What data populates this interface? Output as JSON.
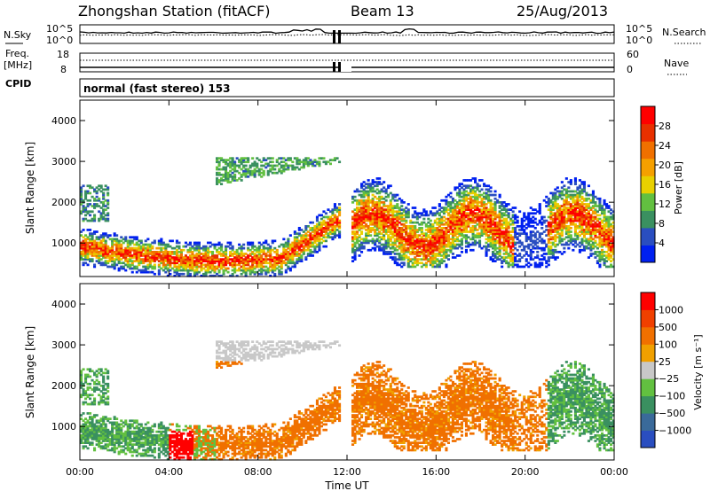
{
  "header": {
    "station_title": "Zhongshan Station (fitACF)",
    "beam": "Beam 13",
    "date": "25/Aug/2013"
  },
  "top_panel": {
    "left_label": "N.Sky",
    "left_ticks": [
      "10^5",
      "10^0"
    ],
    "right_ticks": [
      "10^5",
      "10^0"
    ],
    "right_label": "N.Search"
  },
  "freq_panel": {
    "left_label_1": "Freq.",
    "left_label_2": "[MHz]",
    "left_ticks": [
      "18",
      "8"
    ],
    "right_ticks": [
      "60",
      "0"
    ],
    "right_label": "Nave",
    "cpid_label": "CPID"
  },
  "mode_text": "normal (fast stereo) 153",
  "range_axis": {
    "label": "Slant Range [km]",
    "ticks": [
      "4000",
      "3000",
      "2000",
      "1000"
    ]
  },
  "time_axis": {
    "label": "Time UT",
    "ticks": [
      "00:00",
      "04:00",
      "08:00",
      "12:00",
      "16:00",
      "20:00",
      "00:00"
    ]
  },
  "colors": {
    "power": [
      "#0020f0",
      "#2a4ec0",
      "#3a9060",
      "#62c040",
      "#e8d000",
      "#f5a000",
      "#f07000",
      "#e83000",
      "#ff0000"
    ],
    "velocity": [
      "#2a4ec0",
      "#3a6a9a",
      "#3a9060",
      "#62c040",
      "#c8c8c8",
      "#f0a000",
      "#f07000",
      "#f04000",
      "#ff0000"
    ]
  },
  "chart_data": [
    {
      "type": "heatmap",
      "name": "power",
      "xlabel": "Time UT",
      "ylabel": "Slant Range [km]",
      "x_range_hours": [
        0,
        24
      ],
      "y_range_km": [
        180,
        4500
      ],
      "colorbar": {
        "label": "Power [dB]",
        "ticks": [
          "28",
          "24",
          "20",
          "16",
          "12",
          "8",
          "4"
        ],
        "range": [
          0,
          32
        ]
      }
    },
    {
      "type": "heatmap",
      "name": "velocity",
      "xlabel": "Time UT",
      "ylabel": "Slant Range [km]",
      "x_range_hours": [
        0,
        24
      ],
      "y_range_km": [
        180,
        4500
      ],
      "colorbar": {
        "label": "Velocity [m s⁻¹]",
        "ticks": [
          "1000",
          "500",
          "100",
          "25",
          "−25",
          "−100",
          "−500",
          "−1000"
        ]
      }
    }
  ]
}
